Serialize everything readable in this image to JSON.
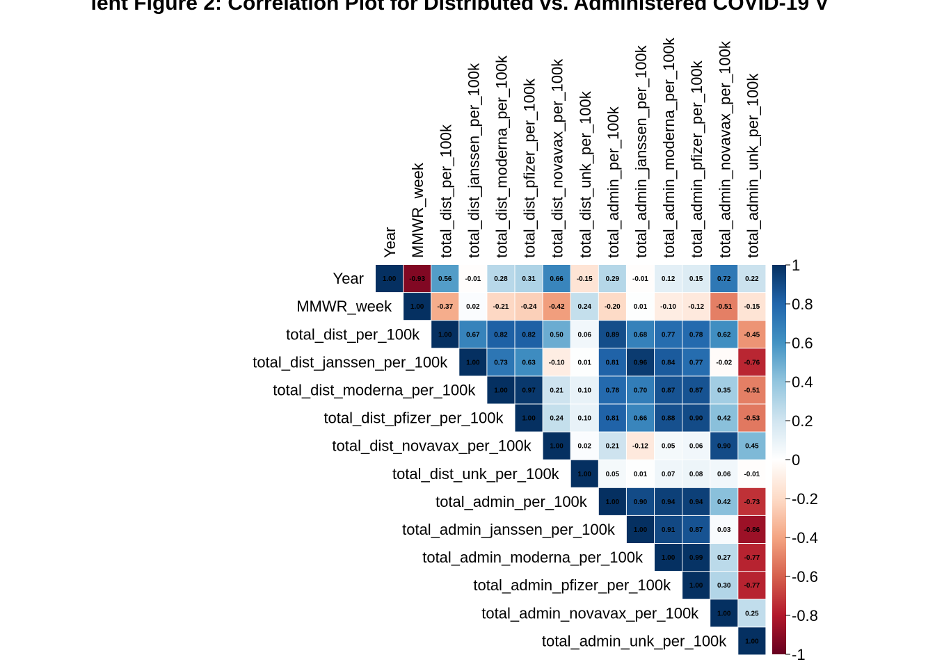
{
  "chart_data": {
    "type": "heatmap",
    "title": "ient Figure 2: Correlation Plot for Distributed vs. Administered COVID-19 V",
    "variables": [
      "Year",
      "MMWR_week",
      "total_dist_per_100k",
      "total_dist_janssen_per_100k",
      "total_dist_moderna_per_100k",
      "total_dist_pfizer_per_100k",
      "total_dist_novavax_per_100k",
      "total_dist_unk_per_100k",
      "total_admin_per_100k",
      "total_admin_janssen_per_100k",
      "total_admin_moderna_per_100k",
      "total_admin_pfizer_per_100k",
      "total_admin_novavax_per_100k",
      "total_admin_unk_per_100k"
    ],
    "layout": "upper-triangle",
    "matrix_upper": [
      [
        1.0,
        -0.93,
        0.56,
        -0.01,
        0.28,
        0.31,
        0.66,
        -0.15,
        0.29,
        -0.01,
        0.12,
        0.15,
        0.72,
        0.22
      ],
      [
        1.0,
        -0.37,
        0.02,
        -0.21,
        -0.24,
        -0.42,
        0.24,
        -0.2,
        0.01,
        -0.1,
        -0.12,
        -0.51,
        -0.15
      ],
      [
        1.0,
        0.67,
        0.82,
        0.82,
        0.5,
        0.06,
        0.89,
        0.68,
        0.77,
        0.78,
        0.62,
        -0.45
      ],
      [
        1.0,
        0.73,
        0.63,
        -0.1,
        0.01,
        0.81,
        0.96,
        0.84,
        0.77,
        -0.02,
        -0.76
      ],
      [
        1.0,
        0.97,
        0.21,
        0.1,
        0.78,
        0.7,
        0.87,
        0.87,
        0.35,
        -0.51
      ],
      [
        1.0,
        0.24,
        0.1,
        0.81,
        0.66,
        0.88,
        0.9,
        0.42,
        -0.53
      ],
      [
        1.0,
        0.02,
        0.21,
        -0.12,
        0.05,
        0.06,
        0.9,
        0.45
      ],
      [
        1.0,
        0.05,
        0.01,
        0.07,
        0.08,
        0.06,
        -0.01
      ],
      [
        1.0,
        0.9,
        0.94,
        0.94,
        0.42,
        -0.73
      ],
      [
        1.0,
        0.91,
        0.87,
        0.03,
        -0.86
      ],
      [
        1.0,
        0.99,
        0.27,
        -0.77
      ],
      [
        1.0,
        0.3,
        -0.77
      ],
      [
        1.0,
        0.25
      ],
      [
        1.0
      ]
    ],
    "color_scale": {
      "min": -1,
      "max": 1,
      "ticks": [
        1,
        0.8,
        0.6,
        0.4,
        0.2,
        0,
        -0.2,
        -0.4,
        -0.6,
        -0.8,
        -1
      ],
      "tick_labels": [
        "1",
        "0.8",
        "0.6",
        "0.4",
        "0.2",
        "0",
        "-0.2",
        "-0.4",
        "-0.6",
        "-0.8",
        "-1"
      ],
      "colors": [
        "#67001F",
        "#B2182B",
        "#D6604D",
        "#F4A582",
        "#FDDBC7",
        "#FFFFFF",
        "#D1E5F0",
        "#92C5DE",
        "#4393C3",
        "#2166AC",
        "#053061"
      ]
    },
    "legend_position": "right",
    "grid": false
  }
}
